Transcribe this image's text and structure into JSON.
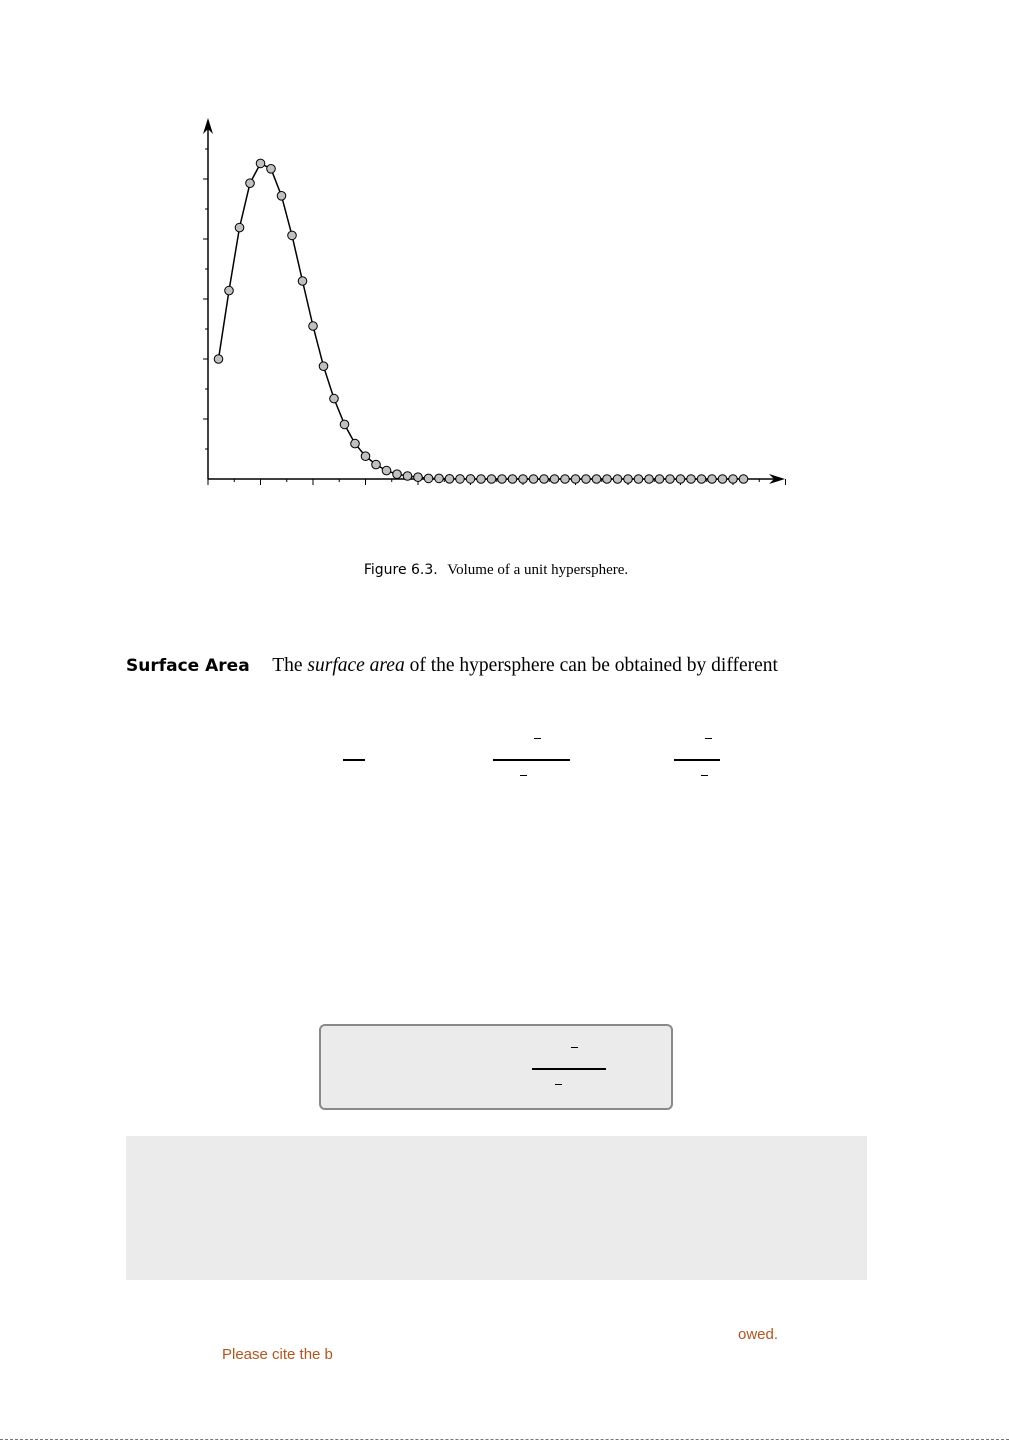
{
  "chart_data": {
    "type": "line",
    "title": "",
    "xlabel": "",
    "ylabel": "",
    "x": [
      1,
      2,
      3,
      4,
      5,
      6,
      7,
      8,
      9,
      10,
      11,
      12,
      13,
      14,
      15,
      16,
      17,
      18,
      19,
      20,
      21,
      22,
      23,
      24,
      25,
      26,
      27,
      28,
      29,
      30,
      31,
      32,
      33,
      34,
      35,
      36,
      37,
      38,
      39,
      40,
      41,
      42,
      43,
      44,
      45,
      46,
      47,
      48,
      49,
      50,
      51
    ],
    "values": [
      2.0,
      3.14,
      4.19,
      4.93,
      5.26,
      5.17,
      4.72,
      4.06,
      3.3,
      2.55,
      1.88,
      1.34,
      0.91,
      0.59,
      0.38,
      0.24,
      0.14,
      0.08,
      0.05,
      0.03,
      0.01,
      0.01,
      0.004,
      0.002,
      0.001,
      0,
      0,
      0,
      0,
      0,
      0,
      0,
      0,
      0,
      0,
      0,
      0,
      0,
      0,
      0,
      0,
      0,
      0,
      0,
      0,
      0,
      0,
      0,
      0,
      0,
      0
    ],
    "xlim": [
      0,
      55
    ],
    "ylim": [
      0,
      6
    ],
    "grid": false,
    "marker": "circle",
    "marker_color": "#c0c0c0"
  },
  "caption": {
    "label": "Figure 6.3.",
    "text": "Volume of a unit hypersphere."
  },
  "paragraph": {
    "heading": "Surface Area",
    "before": "The",
    "emphasis": "surface area",
    "after": "of the hypersphere can be obtained by different"
  },
  "footer": {
    "right_fragment": "owed.",
    "left_fragment": "Please cite the b"
  },
  "colors": {
    "panel": "#ebebeb",
    "box_border": "#8a8a8a",
    "footer_text": "#b5541c"
  }
}
